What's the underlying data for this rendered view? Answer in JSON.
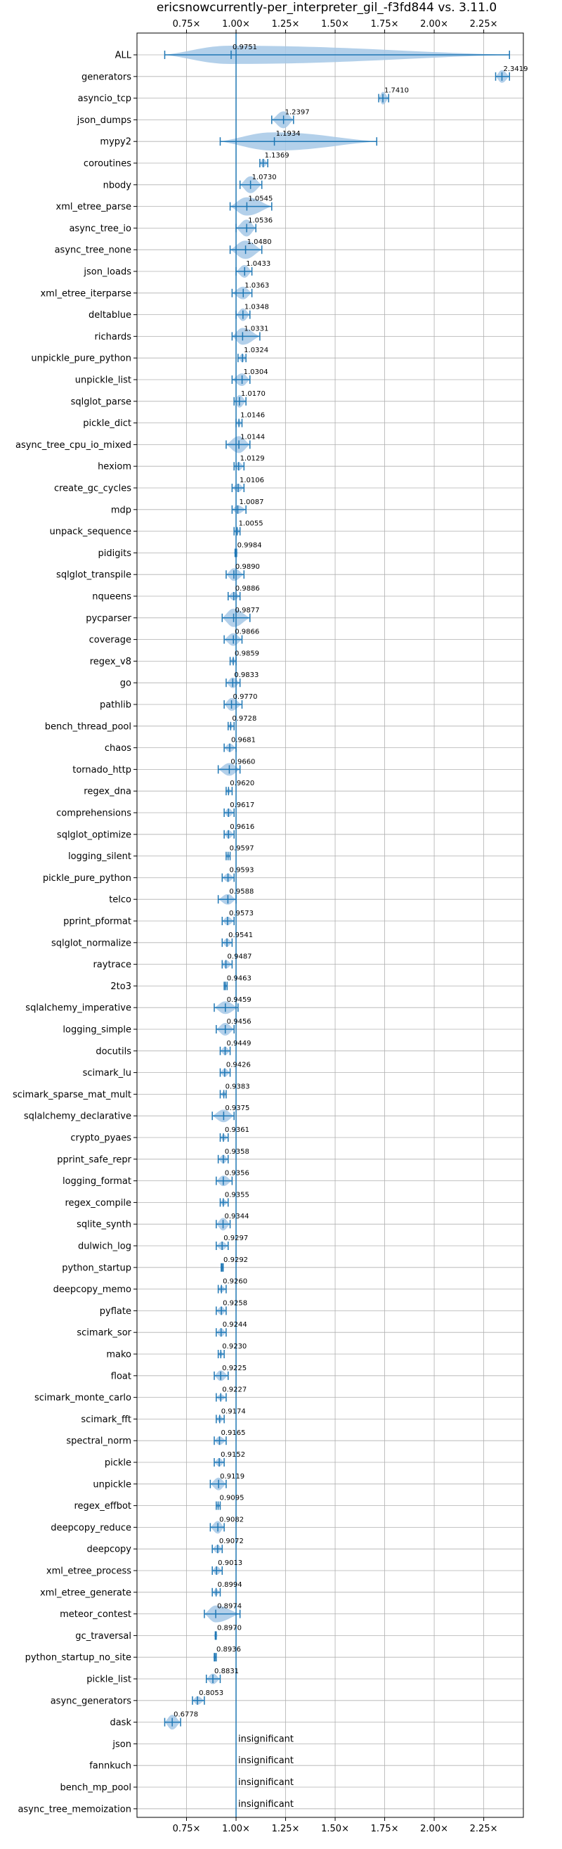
{
  "chart_data": {
    "type": "violin",
    "title": "ericsnowcurrently-per_interpreter_gil_-f3fd844 vs. 3.11.0",
    "x_ticks": [
      "0.75×",
      "1.00×",
      "1.25×",
      "1.50×",
      "1.75×",
      "2.00×",
      "2.25×"
    ],
    "x_tick_values": [
      0.75,
      1.0,
      1.25,
      1.5,
      1.75,
      2.0,
      2.25
    ],
    "xlim": [
      0.5,
      2.45
    ],
    "reference_line": 1.0,
    "grid": true,
    "insignificant_text": "insignificant",
    "benchmarks": [
      {
        "name": "ALL",
        "value": 0.9751,
        "label": "0.9751",
        "min": 0.64,
        "max": 2.38,
        "spread": 0.06
      },
      {
        "name": "generators",
        "value": 2.3419,
        "label": "2.3419",
        "min": 2.31,
        "max": 2.38,
        "spread": 0.03
      },
      {
        "name": "asyncio_tcp",
        "value": 1.741,
        "label": "1.7410",
        "min": 1.72,
        "max": 1.77,
        "spread": 0.03
      },
      {
        "name": "json_dumps",
        "value": 1.2397,
        "label": "1.2397",
        "min": 1.18,
        "max": 1.29,
        "spread": 0.04
      },
      {
        "name": "mypy2",
        "value": 1.1934,
        "label": "1.1934",
        "min": 0.92,
        "max": 1.71,
        "spread": 0.2
      },
      {
        "name": "coroutines",
        "value": 1.1369,
        "label": "1.1369",
        "min": 1.12,
        "max": 1.16,
        "spread": 0.02
      },
      {
        "name": "nbody",
        "value": 1.073,
        "label": "1.0730",
        "min": 1.02,
        "max": 1.13,
        "spread": 0.04
      },
      {
        "name": "xml_etree_parse",
        "value": 1.0545,
        "label": "1.0545",
        "min": 0.97,
        "max": 1.18,
        "spread": 0.05
      },
      {
        "name": "async_tree_io",
        "value": 1.0536,
        "label": "1.0536",
        "min": 1.0,
        "max": 1.1,
        "spread": 0.04
      },
      {
        "name": "async_tree_none",
        "value": 1.048,
        "label": "1.0480",
        "min": 0.97,
        "max": 1.13,
        "spread": 0.05
      },
      {
        "name": "json_loads",
        "value": 1.0433,
        "label": "1.0433",
        "min": 1.0,
        "max": 1.08,
        "spread": 0.03
      },
      {
        "name": "xml_etree_iterparse",
        "value": 1.0363,
        "label": "1.0363",
        "min": 0.98,
        "max": 1.08,
        "spread": 0.03
      },
      {
        "name": "deltablue",
        "value": 1.0348,
        "label": "1.0348",
        "min": 1.0,
        "max": 1.07,
        "spread": 0.03
      },
      {
        "name": "richards",
        "value": 1.0331,
        "label": "1.0331",
        "min": 0.98,
        "max": 1.12,
        "spread": 0.04
      },
      {
        "name": "unpickle_pure_python",
        "value": 1.0324,
        "label": "1.0324",
        "min": 1.01,
        "max": 1.05,
        "spread": 0.02
      },
      {
        "name": "unpickle_list",
        "value": 1.0304,
        "label": "1.0304",
        "min": 0.98,
        "max": 1.07,
        "spread": 0.03
      },
      {
        "name": "sqlglot_parse",
        "value": 1.017,
        "label": "1.0170",
        "min": 0.99,
        "max": 1.05,
        "spread": 0.03
      },
      {
        "name": "pickle_dict",
        "value": 1.0146,
        "label": "1.0146",
        "min": 1.0,
        "max": 1.03,
        "spread": 0.015
      },
      {
        "name": "async_tree_cpu_io_mixed",
        "value": 1.0144,
        "label": "1.0144",
        "min": 0.95,
        "max": 1.07,
        "spread": 0.04
      },
      {
        "name": "hexiom",
        "value": 1.0129,
        "label": "1.0129",
        "min": 0.99,
        "max": 1.04,
        "spread": 0.02
      },
      {
        "name": "create_gc_cycles",
        "value": 1.0106,
        "label": "1.0106",
        "min": 0.98,
        "max": 1.04,
        "spread": 0.02
      },
      {
        "name": "mdp",
        "value": 1.0087,
        "label": "1.0087",
        "min": 0.98,
        "max": 1.05,
        "spread": 0.02
      },
      {
        "name": "unpack_sequence",
        "value": 1.0055,
        "label": "1.0055",
        "min": 0.99,
        "max": 1.02,
        "spread": 0.015
      },
      {
        "name": "pidigits",
        "value": 0.9984,
        "label": "0.9984",
        "min": 0.995,
        "max": 1.003,
        "spread": 0.004
      },
      {
        "name": "sqlglot_transpile",
        "value": 0.989,
        "label": "0.9890",
        "min": 0.95,
        "max": 1.04,
        "spread": 0.03
      },
      {
        "name": "nqueens",
        "value": 0.9886,
        "label": "0.9886",
        "min": 0.96,
        "max": 1.02,
        "spread": 0.02
      },
      {
        "name": "pycparser",
        "value": 0.9877,
        "label": "0.9877",
        "min": 0.93,
        "max": 1.07,
        "spread": 0.05
      },
      {
        "name": "coverage",
        "value": 0.9866,
        "label": "0.9866",
        "min": 0.94,
        "max": 1.03,
        "spread": 0.03
      },
      {
        "name": "regex_v8",
        "value": 0.9859,
        "label": "0.9859",
        "min": 0.97,
        "max": 1.0,
        "spread": 0.015
      },
      {
        "name": "go",
        "value": 0.9833,
        "label": "0.9833",
        "min": 0.95,
        "max": 1.02,
        "spread": 0.025
      },
      {
        "name": "pathlib",
        "value": 0.977,
        "label": "0.9770",
        "min": 0.94,
        "max": 1.03,
        "spread": 0.03
      },
      {
        "name": "bench_thread_pool",
        "value": 0.9728,
        "label": "0.9728",
        "min": 0.96,
        "max": 0.99,
        "spread": 0.012
      },
      {
        "name": "chaos",
        "value": 0.9681,
        "label": "0.9681",
        "min": 0.94,
        "max": 1.0,
        "spread": 0.02
      },
      {
        "name": "tornado_http",
        "value": 0.966,
        "label": "0.9660",
        "min": 0.91,
        "max": 1.02,
        "spread": 0.03
      },
      {
        "name": "regex_dna",
        "value": 0.962,
        "label": "0.9620",
        "min": 0.95,
        "max": 0.98,
        "spread": 0.012
      },
      {
        "name": "comprehensions",
        "value": 0.9617,
        "label": "0.9617",
        "min": 0.94,
        "max": 0.99,
        "spread": 0.02
      },
      {
        "name": "sqlglot_optimize",
        "value": 0.9616,
        "label": "0.9616",
        "min": 0.94,
        "max": 0.99,
        "spread": 0.02
      },
      {
        "name": "logging_silent",
        "value": 0.9597,
        "label": "0.9597",
        "min": 0.95,
        "max": 0.97,
        "spread": 0.01
      },
      {
        "name": "pickle_pure_python",
        "value": 0.9593,
        "label": "0.9593",
        "min": 0.93,
        "max": 0.99,
        "spread": 0.02
      },
      {
        "name": "telco",
        "value": 0.9588,
        "label": "0.9588",
        "min": 0.91,
        "max": 1.0,
        "spread": 0.025
      },
      {
        "name": "pprint_pformat",
        "value": 0.9573,
        "label": "0.9573",
        "min": 0.93,
        "max": 0.99,
        "spread": 0.02
      },
      {
        "name": "sqlglot_normalize",
        "value": 0.9541,
        "label": "0.9541",
        "min": 0.93,
        "max": 0.98,
        "spread": 0.02
      },
      {
        "name": "raytrace",
        "value": 0.9487,
        "label": "0.9487",
        "min": 0.93,
        "max": 0.98,
        "spread": 0.02
      },
      {
        "name": "2to3",
        "value": 0.9463,
        "label": "0.9463",
        "min": 0.94,
        "max": 0.955,
        "spread": 0.008
      },
      {
        "name": "sqlalchemy_imperative",
        "value": 0.9459,
        "label": "0.9459",
        "min": 0.89,
        "max": 1.01,
        "spread": 0.03
      },
      {
        "name": "logging_simple",
        "value": 0.9456,
        "label": "0.9456",
        "min": 0.9,
        "max": 0.99,
        "spread": 0.03
      },
      {
        "name": "docutils",
        "value": 0.9449,
        "label": "0.9449",
        "min": 0.92,
        "max": 0.97,
        "spread": 0.02
      },
      {
        "name": "scimark_lu",
        "value": 0.9426,
        "label": "0.9426",
        "min": 0.92,
        "max": 0.97,
        "spread": 0.02
      },
      {
        "name": "scimark_sparse_mat_mult",
        "value": 0.9383,
        "label": "0.9383",
        "min": 0.92,
        "max": 0.95,
        "spread": 0.012
      },
      {
        "name": "sqlalchemy_declarative",
        "value": 0.9375,
        "label": "0.9375",
        "min": 0.88,
        "max": 0.99,
        "spread": 0.03
      },
      {
        "name": "crypto_pyaes",
        "value": 0.9361,
        "label": "0.9361",
        "min": 0.92,
        "max": 0.96,
        "spread": 0.015
      },
      {
        "name": "pprint_safe_repr",
        "value": 0.9358,
        "label": "0.9358",
        "min": 0.91,
        "max": 0.96,
        "spread": 0.02
      },
      {
        "name": "logging_format",
        "value": 0.9356,
        "label": "0.9356",
        "min": 0.9,
        "max": 0.98,
        "spread": 0.025
      },
      {
        "name": "regex_compile",
        "value": 0.9355,
        "label": "0.9355",
        "min": 0.92,
        "max": 0.96,
        "spread": 0.015
      },
      {
        "name": "sqlite_synth",
        "value": 0.9344,
        "label": "0.9344",
        "min": 0.9,
        "max": 0.97,
        "spread": 0.03
      },
      {
        "name": "dulwich_log",
        "value": 0.9297,
        "label": "0.9297",
        "min": 0.9,
        "max": 0.96,
        "spread": 0.02
      },
      {
        "name": "python_startup",
        "value": 0.9292,
        "label": "0.9292",
        "min": 0.925,
        "max": 0.935,
        "spread": 0.004
      },
      {
        "name": "deepcopy_memo",
        "value": 0.926,
        "label": "0.9260",
        "min": 0.91,
        "max": 0.95,
        "spread": 0.015
      },
      {
        "name": "pyflate",
        "value": 0.9258,
        "label": "0.9258",
        "min": 0.9,
        "max": 0.95,
        "spread": 0.02
      },
      {
        "name": "scimark_sor",
        "value": 0.9244,
        "label": "0.9244",
        "min": 0.9,
        "max": 0.95,
        "spread": 0.02
      },
      {
        "name": "mako",
        "value": 0.923,
        "label": "0.9230",
        "min": 0.91,
        "max": 0.94,
        "spread": 0.012
      },
      {
        "name": "float",
        "value": 0.9225,
        "label": "0.9225",
        "min": 0.89,
        "max": 0.96,
        "spread": 0.025
      },
      {
        "name": "scimark_monte_carlo",
        "value": 0.9227,
        "label": "0.9227",
        "min": 0.9,
        "max": 0.95,
        "spread": 0.015
      },
      {
        "name": "scimark_fft",
        "value": 0.9174,
        "label": "0.9174",
        "min": 0.9,
        "max": 0.94,
        "spread": 0.015
      },
      {
        "name": "spectral_norm",
        "value": 0.9165,
        "label": "0.9165",
        "min": 0.89,
        "max": 0.95,
        "spread": 0.02
      },
      {
        "name": "pickle",
        "value": 0.9152,
        "label": "0.9152",
        "min": 0.89,
        "max": 0.94,
        "spread": 0.02
      },
      {
        "name": "unpickle",
        "value": 0.9119,
        "label": "0.9119",
        "min": 0.87,
        "max": 0.95,
        "spread": 0.03
      },
      {
        "name": "regex_effbot",
        "value": 0.9095,
        "label": "0.9095",
        "min": 0.9,
        "max": 0.92,
        "spread": 0.01
      },
      {
        "name": "deepcopy_reduce",
        "value": 0.9082,
        "label": "0.9082",
        "min": 0.87,
        "max": 0.94,
        "spread": 0.03
      },
      {
        "name": "deepcopy",
        "value": 0.9072,
        "label": "0.9072",
        "min": 0.88,
        "max": 0.93,
        "spread": 0.02
      },
      {
        "name": "xml_etree_process",
        "value": 0.9013,
        "label": "0.9013",
        "min": 0.88,
        "max": 0.93,
        "spread": 0.02
      },
      {
        "name": "xml_etree_generate",
        "value": 0.8994,
        "label": "0.8994",
        "min": 0.88,
        "max": 0.92,
        "spread": 0.015
      },
      {
        "name": "meteor_contest",
        "value": 0.8974,
        "label": "0.8974",
        "min": 0.84,
        "max": 1.02,
        "spread": 0.04
      },
      {
        "name": "gc_traversal",
        "value": 0.897,
        "label": "0.8970",
        "min": 0.895,
        "max": 0.9,
        "spread": 0.003
      },
      {
        "name": "python_startup_no_site",
        "value": 0.8936,
        "label": "0.8936",
        "min": 0.89,
        "max": 0.9,
        "spread": 0.004
      },
      {
        "name": "pickle_list",
        "value": 0.8831,
        "label": "0.8831",
        "min": 0.85,
        "max": 0.92,
        "spread": 0.025
      },
      {
        "name": "async_generators",
        "value": 0.8053,
        "label": "0.8053",
        "min": 0.78,
        "max": 0.84,
        "spread": 0.02
      },
      {
        "name": "dask",
        "value": 0.6778,
        "label": "0.6778",
        "min": 0.64,
        "max": 0.72,
        "spread": 0.035
      },
      {
        "name": "json",
        "value": null,
        "label": "insignificant"
      },
      {
        "name": "fannkuch",
        "value": null,
        "label": "insignificant"
      },
      {
        "name": "bench_mp_pool",
        "value": null,
        "label": "insignificant"
      },
      {
        "name": "async_tree_memoization",
        "value": null,
        "label": "insignificant"
      }
    ]
  },
  "colors": {
    "accent": "#1f77b4",
    "violin": "#a6c8e6",
    "grid": "#b0b0b0"
  }
}
